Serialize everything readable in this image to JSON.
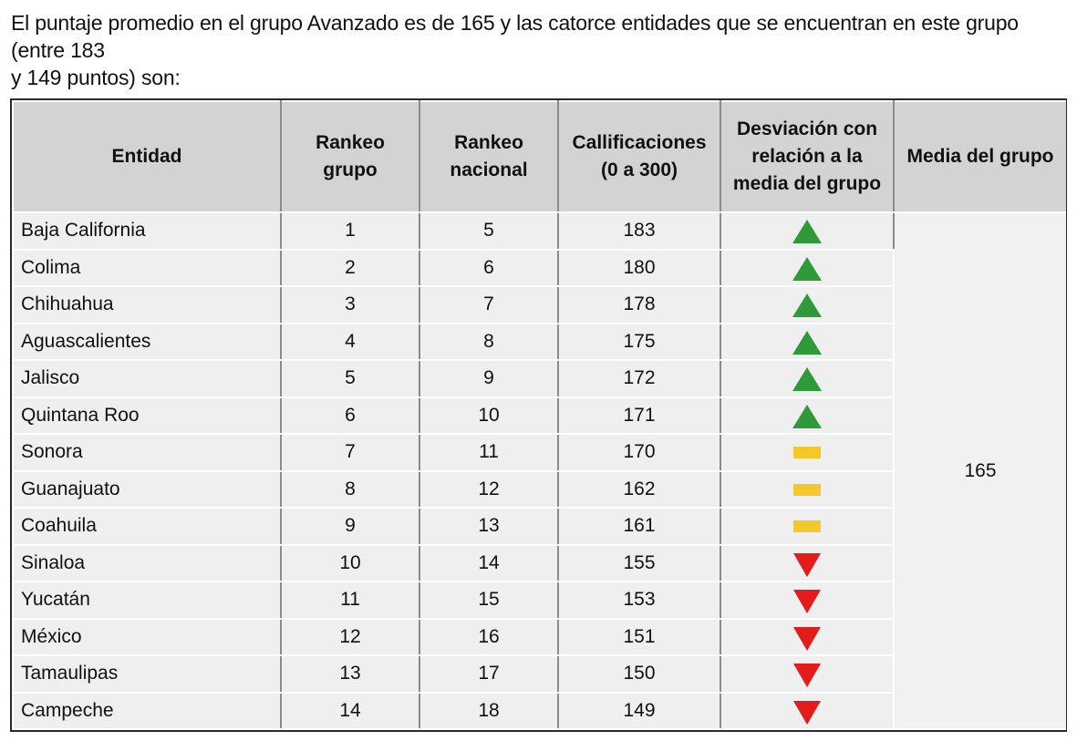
{
  "intro": {
    "line1": "El puntaje promedio en el grupo Avanzado es de 165 y las catorce entidades que se encuentran en este grupo (entre 183",
    "line2": "y 149 puntos) son:"
  },
  "table": {
    "headers": {
      "entidad": "Entidad",
      "rankeo_grupo": [
        "Rankeo",
        "grupo"
      ],
      "rankeo_nacional": [
        "Rankeo",
        "nacional"
      ],
      "calificaciones": [
        "Callificaciones",
        "(0 a 300)"
      ],
      "desviacion": [
        "Desviación con",
        "relación a la",
        "media del grupo"
      ],
      "media": "Media del grupo"
    },
    "media_value": "165",
    "colors": {
      "up": "#2e9a3a",
      "equal": "#f2c928",
      "down": "#e31b1b"
    },
    "rows": [
      {
        "entidad": "Baja California",
        "rank_grupo": "1",
        "rank_nacional": "5",
        "calificacion": "183",
        "desviacion": "up"
      },
      {
        "entidad": "Colima",
        "rank_grupo": "2",
        "rank_nacional": "6",
        "calificacion": "180",
        "desviacion": "up"
      },
      {
        "entidad": "Chihuahua",
        "rank_grupo": "3",
        "rank_nacional": "7",
        "calificacion": "178",
        "desviacion": "up"
      },
      {
        "entidad": "Aguascalientes",
        "rank_grupo": "4",
        "rank_nacional": "8",
        "calificacion": "175",
        "desviacion": "up"
      },
      {
        "entidad": "Jalisco",
        "rank_grupo": "5",
        "rank_nacional": "9",
        "calificacion": "172",
        "desviacion": "up"
      },
      {
        "entidad": "Quintana Roo",
        "rank_grupo": "6",
        "rank_nacional": "10",
        "calificacion": "171",
        "desviacion": "up"
      },
      {
        "entidad": "Sonora",
        "rank_grupo": "7",
        "rank_nacional": "11",
        "calificacion": "170",
        "desviacion": "equal"
      },
      {
        "entidad": "Guanajuato",
        "rank_grupo": "8",
        "rank_nacional": "12",
        "calificacion": "162",
        "desviacion": "equal"
      },
      {
        "entidad": "Coahuila",
        "rank_grupo": "9",
        "rank_nacional": "13",
        "calificacion": "161",
        "desviacion": "equal"
      },
      {
        "entidad": "Sinaloa",
        "rank_grupo": "10",
        "rank_nacional": "14",
        "calificacion": "155",
        "desviacion": "down"
      },
      {
        "entidad": "Yucatán",
        "rank_grupo": "11",
        "rank_nacional": "15",
        "calificacion": "153",
        "desviacion": "down"
      },
      {
        "entidad": "México",
        "rank_grupo": "12",
        "rank_nacional": "16",
        "calificacion": "151",
        "desviacion": "down"
      },
      {
        "entidad": "Tamaulipas",
        "rank_grupo": "13",
        "rank_nacional": "17",
        "calificacion": "150",
        "desviacion": "down"
      },
      {
        "entidad": "Campeche",
        "rank_grupo": "14",
        "rank_nacional": "18",
        "calificacion": "149",
        "desviacion": "down"
      }
    ]
  }
}
